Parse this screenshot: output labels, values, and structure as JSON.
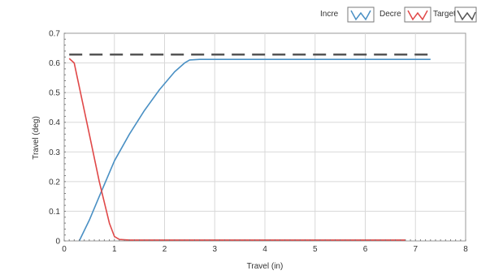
{
  "chart_data": {
    "type": "line",
    "xlabel": "Travel (in)",
    "ylabel": "Travel (deg)",
    "xlim": [
      0,
      8
    ],
    "ylim": [
      0,
      0.7
    ],
    "x_ticks": [
      "0",
      "1",
      "2",
      "3",
      "4",
      "5",
      "6",
      "7",
      "8"
    ],
    "y_ticks": [
      "0",
      "0.1",
      "0.2",
      "0.3",
      "0.4",
      "0.5",
      "0.6",
      "0.7"
    ],
    "grid": true,
    "legend_position": "top-right",
    "legend": [
      {
        "label": "Incre",
        "color": "#4a90c4",
        "icon": "line-sample-icon"
      },
      {
        "label": "Decre",
        "color": "#e04848",
        "icon": "line-sample-icon"
      },
      {
        "label": "Target",
        "color": "#555555",
        "icon": "line-sample-icon"
      }
    ],
    "series": [
      {
        "name": "Incre",
        "color": "#4a90c4",
        "style": "solid",
        "x": [
          0.3,
          0.5,
          0.7,
          1.0,
          1.3,
          1.6,
          1.9,
          2.2,
          2.4,
          2.5,
          2.7,
          3.0,
          4.0,
          5.0,
          6.0,
          7.0,
          7.3
        ],
        "y": [
          0,
          0.07,
          0.15,
          0.27,
          0.36,
          0.44,
          0.51,
          0.57,
          0.6,
          0.61,
          0.612,
          0.612,
          0.612,
          0.612,
          0.612,
          0.612,
          0.612
        ]
      },
      {
        "name": "Decre",
        "color": "#e04848",
        "style": "solid",
        "x": [
          0.1,
          0.2,
          0.3,
          0.5,
          0.7,
          0.9,
          1.0,
          1.1,
          1.3,
          2.0,
          3.0,
          4.0,
          5.0,
          6.0,
          6.8
        ],
        "y": [
          0.615,
          0.6,
          0.52,
          0.36,
          0.2,
          0.06,
          0.015,
          0.005,
          0.003,
          0.003,
          0.003,
          0.003,
          0.003,
          0.003,
          0.003
        ]
      },
      {
        "name": "Target",
        "color": "#555555",
        "style": "dashed",
        "x": [
          0.1,
          7.3
        ],
        "y": [
          0.628,
          0.628
        ]
      }
    ]
  }
}
